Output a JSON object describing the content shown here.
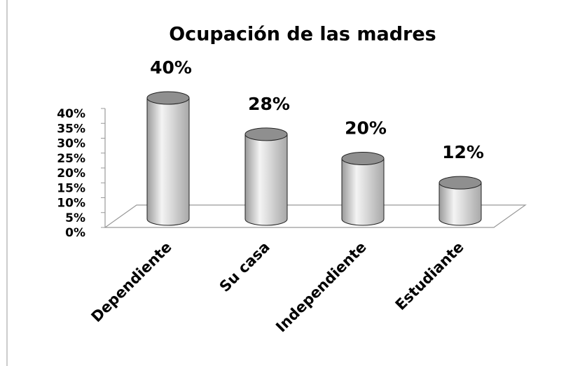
{
  "chart_data": {
    "type": "bar3d-cylinder",
    "title": "Ocupación de las madres",
    "categories": [
      "Dependiente",
      "Su casa",
      "Independiente",
      "Estudiante"
    ],
    "values": [
      40,
      28,
      20,
      12
    ],
    "value_labels": [
      "40%",
      "28%",
      "20%",
      "12%"
    ],
    "color": "#d0d0d0",
    "ylim": [
      0,
      40
    ],
    "yticks": [
      {
        "value": 0,
        "label": "0%"
      },
      {
        "value": 5,
        "label": "5%"
      },
      {
        "value": 10,
        "label": "10%"
      },
      {
        "value": 15,
        "label": "15%"
      },
      {
        "value": 20,
        "label": "20%"
      },
      {
        "value": 25,
        "label": "25%"
      },
      {
        "value": 30,
        "label": "30%"
      },
      {
        "value": 35,
        "label": "35%"
      },
      {
        "value": 40,
        "label": "40%"
      }
    ],
    "grid": false
  }
}
